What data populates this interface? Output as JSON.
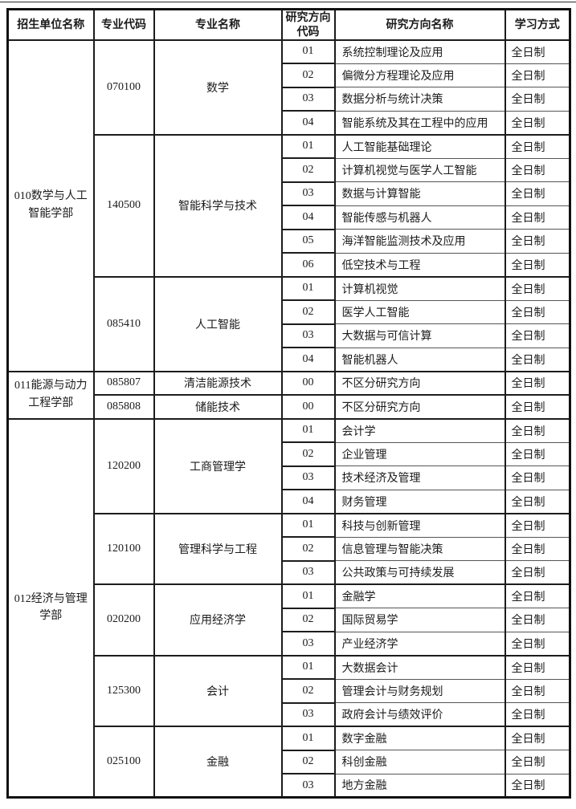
{
  "page": {
    "background": "#ffffff",
    "text_color": "#1b1b1b",
    "border_color": "#111111",
    "study_mode_value": "全日制"
  },
  "table": {
    "headers": [
      "招生单位名称",
      "专业代码",
      "专业名称",
      "研究方向代码",
      "研究方向名称",
      "学习方式"
    ],
    "header_keys": [
      "unit-name",
      "major-code",
      "major-name",
      "direction-code",
      "direction-name",
      "study-mode"
    ],
    "units": [
      {
        "name": "010数学与人工智能学部",
        "majors": [
          {
            "code": "070100",
            "name": "数学",
            "directions": [
              {
                "code": "01",
                "name": "系统控制理论及应用",
                "mode": "全日制"
              },
              {
                "code": "02",
                "name": "偏微分方程理论及应用",
                "mode": "全日制"
              },
              {
                "code": "03",
                "name": "数据分析与统计决策",
                "mode": "全日制"
              },
              {
                "code": "04",
                "name": "智能系统及其在工程中的应用",
                "mode": "全日制"
              }
            ]
          },
          {
            "code": "140500",
            "name": "智能科学与技术",
            "directions": [
              {
                "code": "01",
                "name": "人工智能基础理论",
                "mode": "全日制"
              },
              {
                "code": "02",
                "name": "计算机视觉与医学人工智能",
                "mode": "全日制"
              },
              {
                "code": "03",
                "name": "数据与计算智能",
                "mode": "全日制"
              },
              {
                "code": "04",
                "name": "智能传感与机器人",
                "mode": "全日制"
              },
              {
                "code": "05",
                "name": "海洋智能监测技术及应用",
                "mode": "全日制"
              },
              {
                "code": "06",
                "name": "低空技术与工程",
                "mode": "全日制"
              }
            ]
          },
          {
            "code": "085410",
            "name": "人工智能",
            "directions": [
              {
                "code": "01",
                "name": "计算机视觉",
                "mode": "全日制"
              },
              {
                "code": "02",
                "name": "医学人工智能",
                "mode": "全日制"
              },
              {
                "code": "03",
                "name": "大数据与可信计算",
                "mode": "全日制"
              },
              {
                "code": "04",
                "name": "智能机器人",
                "mode": "全日制"
              }
            ]
          }
        ]
      },
      {
        "name": "011能源与动力工程学部",
        "majors": [
          {
            "code": "085807",
            "name": "清洁能源技术",
            "directions": [
              {
                "code": "00",
                "name": "不区分研究方向",
                "mode": "全日制"
              }
            ]
          },
          {
            "code": "085808",
            "name": "储能技术",
            "directions": [
              {
                "code": "00",
                "name": "不区分研究方向",
                "mode": "全日制"
              }
            ]
          }
        ]
      },
      {
        "name": "012经济与管理学部",
        "majors": [
          {
            "code": "120200",
            "name": "工商管理学",
            "directions": [
              {
                "code": "01",
                "name": "会计学",
                "mode": "全日制"
              },
              {
                "code": "02",
                "name": "企业管理",
                "mode": "全日制"
              },
              {
                "code": "03",
                "name": "技术经济及管理",
                "mode": "全日制"
              },
              {
                "code": "04",
                "name": "财务管理",
                "mode": "全日制"
              }
            ]
          },
          {
            "code": "120100",
            "name": "管理科学与工程",
            "directions": [
              {
                "code": "01",
                "name": "科技与创新管理",
                "mode": "全日制"
              },
              {
                "code": "02",
                "name": "信息管理与智能决策",
                "mode": "全日制"
              },
              {
                "code": "03",
                "name": "公共政策与可持续发展",
                "mode": "全日制"
              }
            ]
          },
          {
            "code": "020200",
            "name": "应用经济学",
            "directions": [
              {
                "code": "01",
                "name": "金融学",
                "mode": "全日制"
              },
              {
                "code": "02",
                "name": "国际贸易学",
                "mode": "全日制"
              },
              {
                "code": "03",
                "name": "产业经济学",
                "mode": "全日制"
              }
            ]
          },
          {
            "code": "125300",
            "name": "会计",
            "directions": [
              {
                "code": "01",
                "name": "大数据会计",
                "mode": "全日制"
              },
              {
                "code": "02",
                "name": "管理会计与财务规划",
                "mode": "全日制"
              },
              {
                "code": "03",
                "name": "政府会计与绩效评价",
                "mode": "全日制"
              }
            ]
          },
          {
            "code": "025100",
            "name": "金融",
            "directions": [
              {
                "code": "01",
                "name": "数字金融",
                "mode": "全日制"
              },
              {
                "code": "02",
                "name": "科创金融",
                "mode": "全日制"
              },
              {
                "code": "03",
                "name": "地方金融",
                "mode": "全日制"
              }
            ]
          }
        ]
      }
    ]
  }
}
